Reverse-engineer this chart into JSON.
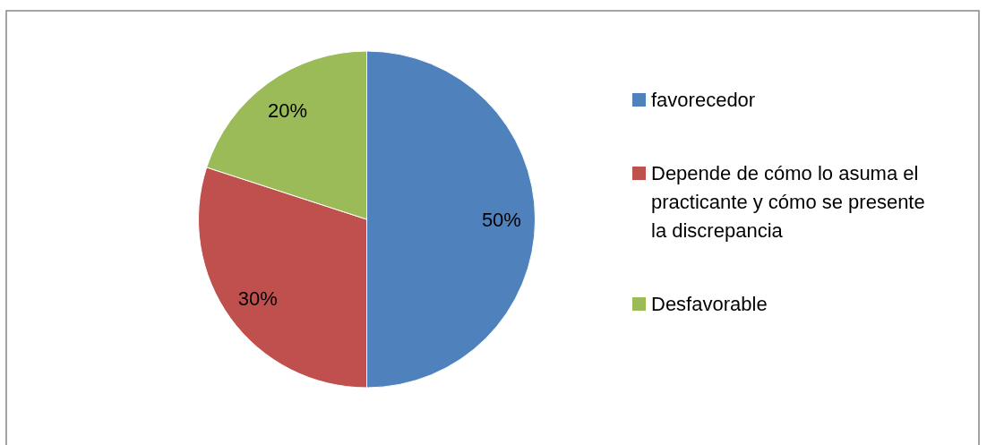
{
  "chart_data": {
    "type": "pie",
    "categories": [
      "favorecedor",
      "Depende de cómo lo asuma el practicante y cómo se presente la discrepancia",
      "Desfavorable"
    ],
    "values": [
      50,
      30,
      20
    ],
    "colors": [
      "#4f81bd",
      "#c0504d",
      "#9bbb59"
    ],
    "value_labels": [
      "50%",
      "30%",
      "20%"
    ],
    "legend": "right"
  }
}
